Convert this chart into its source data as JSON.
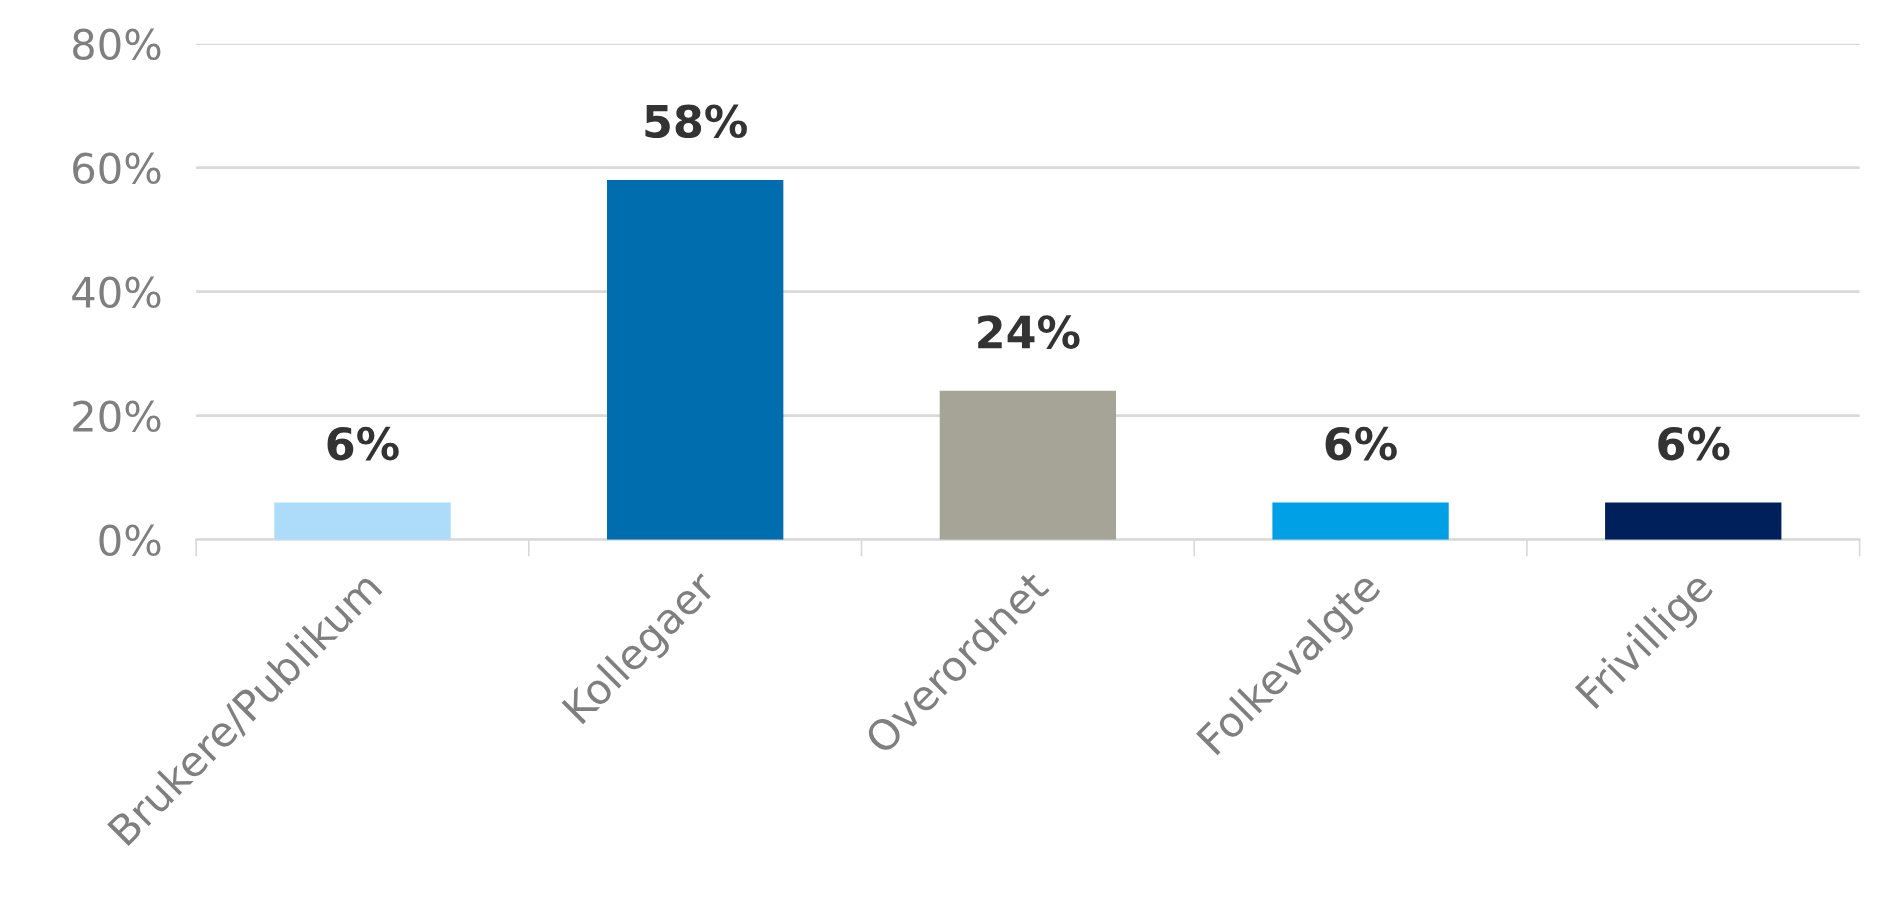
{
  "chart_data": {
    "type": "bar",
    "categories": [
      "Brukere/Publikum",
      "Kollegaer",
      "Overordnet",
      "Folkevalgte",
      "Frivillige"
    ],
    "values": [
      6,
      58,
      24,
      6,
      6
    ],
    "colors": [
      "#addcfa",
      "#006eae",
      "#a6a497",
      "#00a0e6",
      "#00205b"
    ],
    "value_labels": [
      "6%",
      "58%",
      "24%",
      "6%",
      "6%"
    ],
    "ylim": [
      0,
      80
    ],
    "yticks": [
      {
        "value": 0,
        "label": "0%"
      },
      {
        "value": 20,
        "label": "20%"
      },
      {
        "value": 40,
        "label": "40%"
      },
      {
        "value": 60,
        "label": "60%"
      },
      {
        "value": 80,
        "label": "80%"
      }
    ],
    "grid": "y",
    "legend": false
  }
}
